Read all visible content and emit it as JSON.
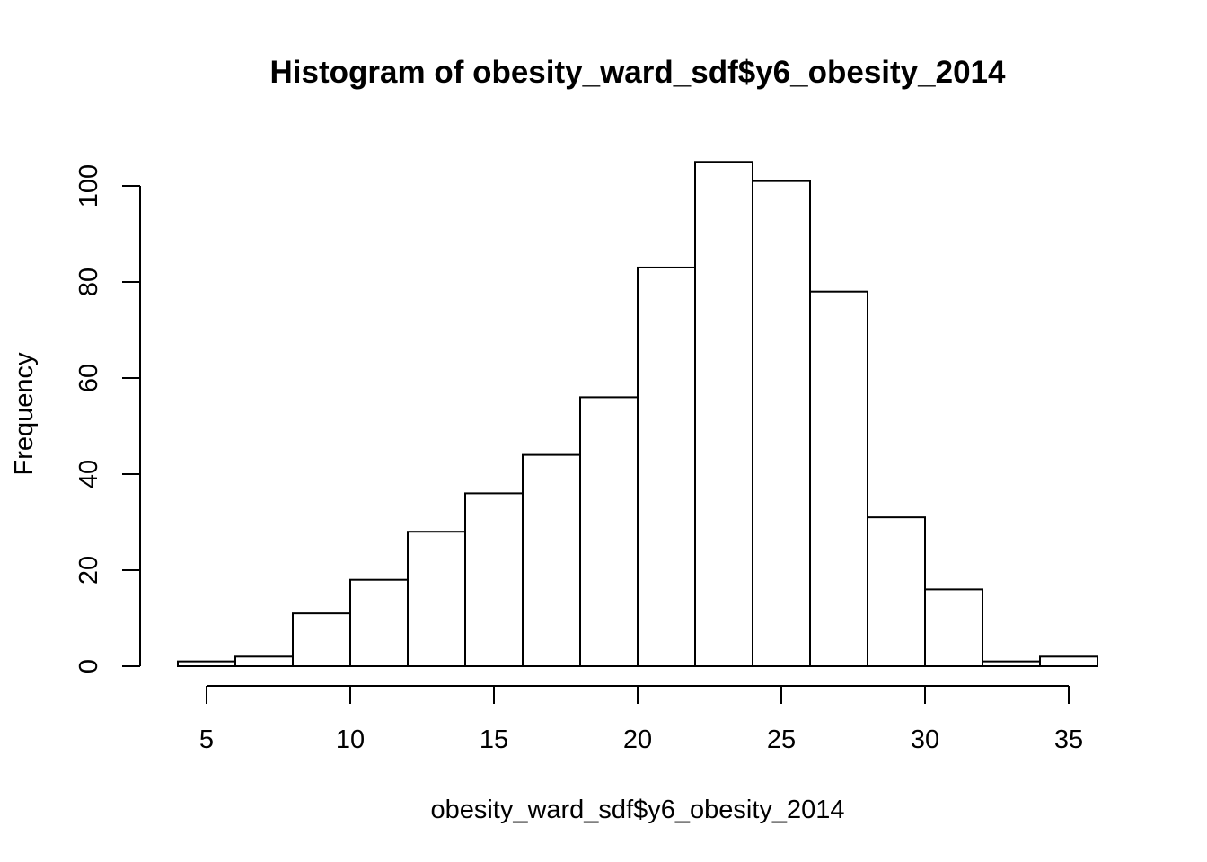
{
  "chart_data": {
    "type": "bar",
    "title": "Histogram of obesity_ward_sdf$y6_obesity_2014",
    "xlabel": "obesity_ward_sdf$y6_obesity_2014",
    "ylabel": "Frequency",
    "bins": [
      {
        "start": 4,
        "end": 6,
        "count": 1
      },
      {
        "start": 6,
        "end": 8,
        "count": 2
      },
      {
        "start": 8,
        "end": 10,
        "count": 11
      },
      {
        "start": 10,
        "end": 12,
        "count": 18
      },
      {
        "start": 12,
        "end": 14,
        "count": 28
      },
      {
        "start": 14,
        "end": 16,
        "count": 36
      },
      {
        "start": 16,
        "end": 18,
        "count": 44
      },
      {
        "start": 18,
        "end": 20,
        "count": 56
      },
      {
        "start": 20,
        "end": 22,
        "count": 83
      },
      {
        "start": 22,
        "end": 24,
        "count": 105
      },
      {
        "start": 24,
        "end": 26,
        "count": 101
      },
      {
        "start": 26,
        "end": 28,
        "count": 78
      },
      {
        "start": 28,
        "end": 30,
        "count": 31
      },
      {
        "start": 30,
        "end": 32,
        "count": 16
      },
      {
        "start": 32,
        "end": 34,
        "count": 1
      },
      {
        "start": 34,
        "end": 36,
        "count": 2
      }
    ],
    "xticks": [
      5,
      10,
      15,
      20,
      25,
      30,
      35
    ],
    "yticks": [
      0,
      20,
      40,
      60,
      80,
      100
    ],
    "xlim": [
      4,
      36
    ],
    "ylim": [
      0,
      105
    ],
    "grid": false,
    "colors": {
      "bar_fill": "#ffffff",
      "bar_stroke": "#000000"
    }
  }
}
